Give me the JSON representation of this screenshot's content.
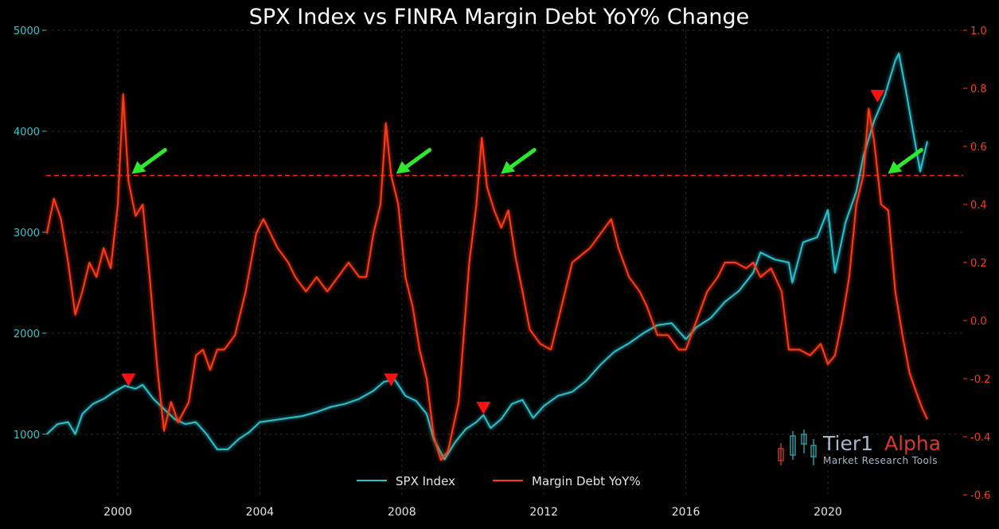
{
  "chart_data": {
    "type": "line",
    "title": "SPX Index vs FINRA Margin Debt YoY% Change",
    "xlim": [
      1998.0,
      2022.8
    ],
    "x_ticks": [
      "2000",
      "2004",
      "2008",
      "2012",
      "2016",
      "2020"
    ],
    "y_left": {
      "lim": [
        400,
        5000
      ],
      "ticks": [
        "1000",
        "2000",
        "3000",
        "4000",
        "5000"
      ],
      "color": "#2cc0cc"
    },
    "y_right": {
      "lim": [
        -0.6,
        1.0
      ],
      "ticks": [
        "-0.6",
        "-0.4",
        "-0.2",
        "0.0",
        "0.2",
        "0.4",
        "0.6",
        "0.8",
        "1.0"
      ],
      "color": "#ff3b12"
    },
    "threshold": {
      "axis": "right",
      "value": 0.5,
      "color": "#ff1a1a"
    },
    "series": [
      {
        "name": "SPX Index",
        "axis": "left",
        "color": "#2cc0cc",
        "points": [
          [
            1998.0,
            1000
          ],
          [
            1998.3,
            1100
          ],
          [
            1998.6,
            1120
          ],
          [
            1998.8,
            1000
          ],
          [
            1999.0,
            1200
          ],
          [
            1999.3,
            1300
          ],
          [
            1999.6,
            1350
          ],
          [
            1999.9,
            1420
          ],
          [
            2000.2,
            1480
          ],
          [
            2000.5,
            1450
          ],
          [
            2000.7,
            1490
          ],
          [
            2001.0,
            1350
          ],
          [
            2001.3,
            1250
          ],
          [
            2001.6,
            1150
          ],
          [
            2001.9,
            1100
          ],
          [
            2002.2,
            1120
          ],
          [
            2002.5,
            1000
          ],
          [
            2002.8,
            850
          ],
          [
            2003.1,
            850
          ],
          [
            2003.4,
            950
          ],
          [
            2003.7,
            1020
          ],
          [
            2004.0,
            1120
          ],
          [
            2004.4,
            1140
          ],
          [
            2004.8,
            1160
          ],
          [
            2005.2,
            1180
          ],
          [
            2005.6,
            1220
          ],
          [
            2006.0,
            1270
          ],
          [
            2006.4,
            1300
          ],
          [
            2006.8,
            1350
          ],
          [
            2007.2,
            1430
          ],
          [
            2007.5,
            1520
          ],
          [
            2007.8,
            1540
          ],
          [
            2008.1,
            1380
          ],
          [
            2008.4,
            1330
          ],
          [
            2008.7,
            1200
          ],
          [
            2008.9,
            950
          ],
          [
            2009.2,
            750
          ],
          [
            2009.5,
            920
          ],
          [
            2009.8,
            1050
          ],
          [
            2010.1,
            1120
          ],
          [
            2010.3,
            1190
          ],
          [
            2010.5,
            1060
          ],
          [
            2010.8,
            1150
          ],
          [
            2011.1,
            1300
          ],
          [
            2011.4,
            1340
          ],
          [
            2011.7,
            1160
          ],
          [
            2012.0,
            1280
          ],
          [
            2012.4,
            1380
          ],
          [
            2012.8,
            1420
          ],
          [
            2013.2,
            1530
          ],
          [
            2013.6,
            1690
          ],
          [
            2014.0,
            1820
          ],
          [
            2014.4,
            1900
          ],
          [
            2014.8,
            2000
          ],
          [
            2015.2,
            2080
          ],
          [
            2015.6,
            2100
          ],
          [
            2016.0,
            1940
          ],
          [
            2016.3,
            2060
          ],
          [
            2016.7,
            2150
          ],
          [
            2017.1,
            2310
          ],
          [
            2017.5,
            2420
          ],
          [
            2017.9,
            2600
          ],
          [
            2018.1,
            2800
          ],
          [
            2018.5,
            2730
          ],
          [
            2018.9,
            2700
          ],
          [
            2019.0,
            2500
          ],
          [
            2019.3,
            2900
          ],
          [
            2019.7,
            2950
          ],
          [
            2020.0,
            3220
          ],
          [
            2020.2,
            2600
          ],
          [
            2020.5,
            3100
          ],
          [
            2020.8,
            3400
          ],
          [
            2021.0,
            3750
          ],
          [
            2021.3,
            4100
          ],
          [
            2021.6,
            4350
          ],
          [
            2021.9,
            4700
          ],
          [
            2022.0,
            4770
          ],
          [
            2022.2,
            4400
          ],
          [
            2022.4,
            4000
          ],
          [
            2022.5,
            3800
          ],
          [
            2022.6,
            3600
          ],
          [
            2022.8,
            3900
          ]
        ]
      },
      {
        "name": "Margin Debt YoY%",
        "axis": "right",
        "color": "#ff3b12",
        "points": [
          [
            1998.0,
            0.3
          ],
          [
            1998.2,
            0.42
          ],
          [
            1998.4,
            0.35
          ],
          [
            1998.6,
            0.2
          ],
          [
            1998.8,
            0.02
          ],
          [
            1999.0,
            0.1
          ],
          [
            1999.2,
            0.2
          ],
          [
            1999.4,
            0.15
          ],
          [
            1999.6,
            0.25
          ],
          [
            1999.8,
            0.18
          ],
          [
            2000.0,
            0.4
          ],
          [
            2000.15,
            0.78
          ],
          [
            2000.3,
            0.48
          ],
          [
            2000.5,
            0.36
          ],
          [
            2000.7,
            0.4
          ],
          [
            2000.9,
            0.15
          ],
          [
            2001.1,
            -0.15
          ],
          [
            2001.3,
            -0.38
          ],
          [
            2001.5,
            -0.28
          ],
          [
            2001.7,
            -0.35
          ],
          [
            2002.0,
            -0.28
          ],
          [
            2002.2,
            -0.12
          ],
          [
            2002.4,
            -0.1
          ],
          [
            2002.6,
            -0.17
          ],
          [
            2002.8,
            -0.1
          ],
          [
            2003.0,
            -0.1
          ],
          [
            2003.3,
            -0.05
          ],
          [
            2003.6,
            0.1
          ],
          [
            2003.9,
            0.3
          ],
          [
            2004.1,
            0.35
          ],
          [
            2004.3,
            0.3
          ],
          [
            2004.5,
            0.25
          ],
          [
            2004.8,
            0.2
          ],
          [
            2005.0,
            0.15
          ],
          [
            2005.3,
            0.1
          ],
          [
            2005.6,
            0.15
          ],
          [
            2005.9,
            0.1
          ],
          [
            2006.2,
            0.15
          ],
          [
            2006.5,
            0.2
          ],
          [
            2006.8,
            0.15
          ],
          [
            2007.0,
            0.15
          ],
          [
            2007.2,
            0.3
          ],
          [
            2007.4,
            0.4
          ],
          [
            2007.55,
            0.68
          ],
          [
            2007.7,
            0.5
          ],
          [
            2007.9,
            0.4
          ],
          [
            2008.1,
            0.15
          ],
          [
            2008.3,
            0.05
          ],
          [
            2008.5,
            -0.1
          ],
          [
            2008.7,
            -0.2
          ],
          [
            2008.9,
            -0.4
          ],
          [
            2009.1,
            -0.48
          ],
          [
            2009.3,
            -0.45
          ],
          [
            2009.6,
            -0.28
          ],
          [
            2009.9,
            0.2
          ],
          [
            2010.1,
            0.4
          ],
          [
            2010.25,
            0.63
          ],
          [
            2010.4,
            0.46
          ],
          [
            2010.6,
            0.38
          ],
          [
            2010.8,
            0.32
          ],
          [
            2011.0,
            0.38
          ],
          [
            2011.2,
            0.22
          ],
          [
            2011.4,
            0.1
          ],
          [
            2011.6,
            -0.03
          ],
          [
            2011.9,
            -0.08
          ],
          [
            2012.2,
            -0.1
          ],
          [
            2012.5,
            0.05
          ],
          [
            2012.8,
            0.2
          ],
          [
            2013.0,
            0.22
          ],
          [
            2013.3,
            0.25
          ],
          [
            2013.6,
            0.3
          ],
          [
            2013.9,
            0.35
          ],
          [
            2014.1,
            0.25
          ],
          [
            2014.4,
            0.15
          ],
          [
            2014.7,
            0.1
          ],
          [
            2014.9,
            0.05
          ],
          [
            2015.2,
            -0.05
          ],
          [
            2015.5,
            -0.05
          ],
          [
            2015.8,
            -0.1
          ],
          [
            2016.0,
            -0.1
          ],
          [
            2016.3,
            0.0
          ],
          [
            2016.6,
            0.1
          ],
          [
            2016.9,
            0.15
          ],
          [
            2017.1,
            0.2
          ],
          [
            2017.4,
            0.2
          ],
          [
            2017.7,
            0.18
          ],
          [
            2017.9,
            0.2
          ],
          [
            2018.1,
            0.15
          ],
          [
            2018.4,
            0.18
          ],
          [
            2018.7,
            0.1
          ],
          [
            2018.9,
            -0.1
          ],
          [
            2019.2,
            -0.1
          ],
          [
            2019.5,
            -0.12
          ],
          [
            2019.8,
            -0.08
          ],
          [
            2020.0,
            -0.15
          ],
          [
            2020.2,
            -0.12
          ],
          [
            2020.4,
            0.0
          ],
          [
            2020.6,
            0.15
          ],
          [
            2020.8,
            0.4
          ],
          [
            2021.0,
            0.5
          ],
          [
            2021.15,
            0.73
          ],
          [
            2021.3,
            0.62
          ],
          [
            2021.5,
            0.4
          ],
          [
            2021.7,
            0.38
          ],
          [
            2021.9,
            0.1
          ],
          [
            2022.1,
            -0.05
          ],
          [
            2022.3,
            -0.18
          ],
          [
            2022.5,
            -0.25
          ],
          [
            2022.65,
            -0.3
          ],
          [
            2022.8,
            -0.34
          ]
        ]
      }
    ],
    "annotations": {
      "green_arrows": [
        [
          2000.3,
          0.5
        ],
        [
          2007.75,
          0.5
        ],
        [
          2010.7,
          0.5
        ],
        [
          2021.6,
          0.5
        ]
      ],
      "red_triangles": [
        {
          "x": 2000.3,
          "axis": "left",
          "y": 1530
        },
        {
          "x": 2007.7,
          "axis": "left",
          "y": 1530
        },
        {
          "x": 2010.3,
          "axis": "left",
          "y": 1250
        },
        {
          "x": 2021.4,
          "axis": "right",
          "y": 0.77
        }
      ]
    },
    "legend": {
      "placement": "bottom-center",
      "entries": [
        "SPX Index",
        "Margin Debt YoY%"
      ]
    },
    "grid": true
  },
  "branding": {
    "name_part1": "Tier1",
    "name_part2": "Alpha",
    "tagline": "Market  Research Tools"
  }
}
